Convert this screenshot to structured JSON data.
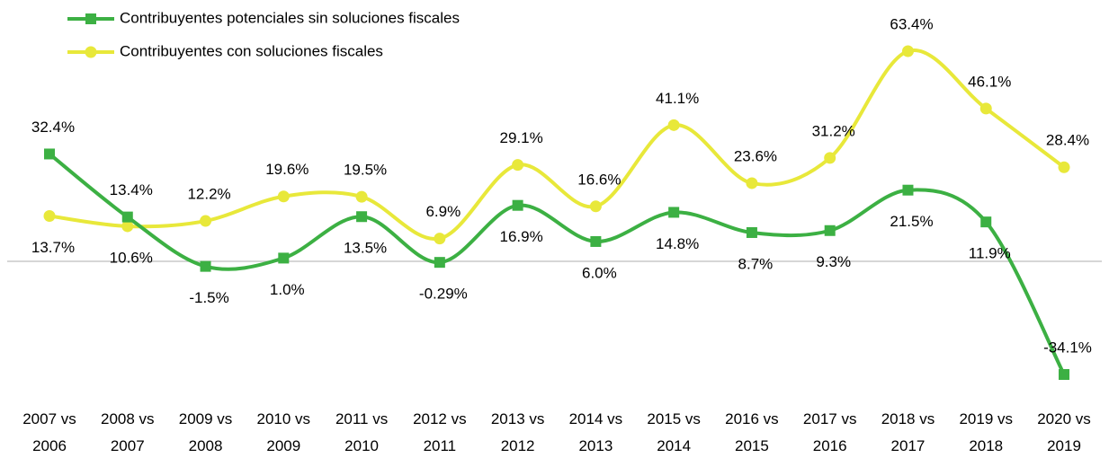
{
  "chart_data": {
    "type": "line",
    "categories": [
      "2007 vs 2006",
      "2008 vs 2007",
      "2009 vs 2008",
      "2010 vs 2009",
      "2011 vs 2010",
      "2012 vs 2011",
      "2013 vs 2012",
      "2014 vs 2013",
      "2015 vs 2014",
      "2016 vs 2015",
      "2017 vs 2016",
      "2018 vs 2017",
      "2019 vs 2018",
      "2020 vs 2019"
    ],
    "series": [
      {
        "name": "Contribuyentes potenciales sin soluciones fiscales",
        "color": "#3cb043",
        "marker": "square",
        "values": [
          32.4,
          13.4,
          -1.5,
          1.0,
          13.5,
          -0.29,
          16.9,
          6.0,
          14.8,
          8.7,
          9.3,
          21.5,
          11.9,
          -34.1
        ],
        "value_labels": [
          "32.4%",
          "13.4%",
          "-1.5%",
          "1.0%",
          "13.5%",
          "-0.29%",
          "16.9%",
          "6.0%",
          "14.8%",
          "8.7%",
          "9.3%",
          "21.5%",
          "11.9%",
          "-34.1%"
        ]
      },
      {
        "name": "Contribuyentes con soluciones fiscales",
        "color": "#e8e83a",
        "marker": "circle",
        "values": [
          13.7,
          10.6,
          12.2,
          19.6,
          19.5,
          6.9,
          29.1,
          16.6,
          41.1,
          23.6,
          31.2,
          63.4,
          46.1,
          28.4
        ],
        "value_labels": [
          "13.7%",
          "10.6%",
          "12.2%",
          "19.6%",
          "19.5%",
          "6.9%",
          "29.1%",
          "16.6%",
          "41.1%",
          "23.6%",
          "31.2%",
          "63.4%",
          "46.1%",
          "28.4%"
        ]
      }
    ]
  }
}
